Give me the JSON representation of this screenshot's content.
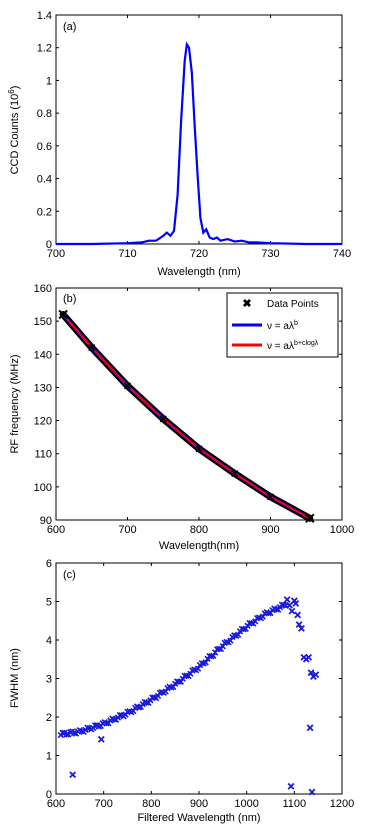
{
  "chart_data": [
    {
      "type": "line",
      "panel_label": "(a)",
      "xlabel": "Wavelength (nm)",
      "ylabel": "CCD Counts (10",
      "ylabel_sup": "6",
      "ylabel_close": ")",
      "xlim": [
        700,
        740
      ],
      "ylim": [
        0,
        1.4
      ],
      "xticks": [
        "700",
        "710",
        "720",
        "730",
        "740"
      ],
      "yticks": [
        "0",
        "0.2",
        "0.4",
        "0.6",
        "0.8",
        "1",
        "1.2",
        "1.4"
      ],
      "grid": false,
      "color": "#0000ff",
      "series": [
        {
          "x": [
            700,
            705,
            710,
            712,
            713,
            714,
            715,
            715.5,
            716,
            716.5,
            717,
            717.5,
            718,
            718.3,
            718.6,
            719,
            719.4,
            719.8,
            720.2,
            720.6,
            721,
            721.5,
            722,
            722.5,
            723,
            724,
            725,
            726,
            727,
            728,
            730,
            735,
            740
          ],
          "y": [
            0.0,
            0.0,
            0.005,
            0.01,
            0.02,
            0.02,
            0.05,
            0.07,
            0.05,
            0.08,
            0.3,
            0.75,
            1.12,
            1.22,
            1.2,
            1.05,
            0.72,
            0.42,
            0.16,
            0.07,
            0.09,
            0.04,
            0.03,
            0.04,
            0.02,
            0.03,
            0.015,
            0.02,
            0.01,
            0.01,
            0.005,
            0.0,
            0.0
          ]
        }
      ]
    },
    {
      "type": "line",
      "panel_label": "(b)",
      "xlabel": "Wavelength(nm)",
      "ylabel": "RF frequency (MHz)",
      "xlim": [
        600,
        1000
      ],
      "ylim": [
        90,
        160
      ],
      "xticks": [
        "600",
        "700",
        "800",
        "900",
        "1000"
      ],
      "yticks": [
        "90",
        "100",
        "110",
        "120",
        "130",
        "140",
        "150",
        "160"
      ],
      "grid": false,
      "legend_position": "top-right",
      "legend": [
        {
          "label": "Data Points",
          "color": "#000000",
          "marker": "x"
        },
        {
          "label": "ν = aλ",
          "sup": "b",
          "color": "#0000ff"
        },
        {
          "label": "ν = aλ",
          "sup": "b+clogλ",
          "color": "#ff0000"
        }
      ],
      "series": [
        {
          "name": "Data Points",
          "x": [
            610,
            650,
            700,
            750,
            800,
            850,
            900,
            955
          ],
          "y": [
            152,
            142,
            130.5,
            120.5,
            111.5,
            104,
            97,
            90.5
          ]
        }
      ]
    },
    {
      "type": "scatter",
      "panel_label": "(c)",
      "xlabel": "Filtered Wavelength (nm)",
      "ylabel": "FWHM (nm)",
      "xlim": [
        600,
        1200
      ],
      "ylim": [
        0,
        6
      ],
      "xticks": [
        "600",
        "700",
        "800",
        "900",
        "1000",
        "1100",
        "1200"
      ],
      "yticks": [
        "0",
        "1",
        "2",
        "3",
        "4",
        "5",
        "6"
      ],
      "grid": false,
      "color": "#1a1adb",
      "trend": {
        "x": [
          610,
          650,
          700,
          750,
          800,
          850,
          900,
          950,
          1000,
          1040,
          1070,
          1085
        ],
        "y": [
          1.55,
          1.62,
          1.82,
          2.1,
          2.45,
          2.85,
          3.3,
          3.85,
          4.35,
          4.68,
          4.85,
          4.95
        ]
      },
      "outliers": {
        "x": [
          635,
          695,
          1085,
          1090,
          1095,
          1100,
          1103,
          1107,
          1110,
          1115,
          1120,
          1125,
          1130,
          1135,
          1140,
          1145,
          1093,
          1137
        ],
        "y": [
          0.5,
          1.42,
          5.05,
          4.9,
          4.75,
          5.02,
          4.95,
          4.65,
          4.4,
          4.3,
          3.55,
          3.5,
          3.55,
          3.15,
          3.05,
          3.1,
          0.2,
          0.05
        ]
      },
      "extra": {
        "x": [
          1133
        ],
        "y": [
          1.72
        ]
      }
    }
  ]
}
